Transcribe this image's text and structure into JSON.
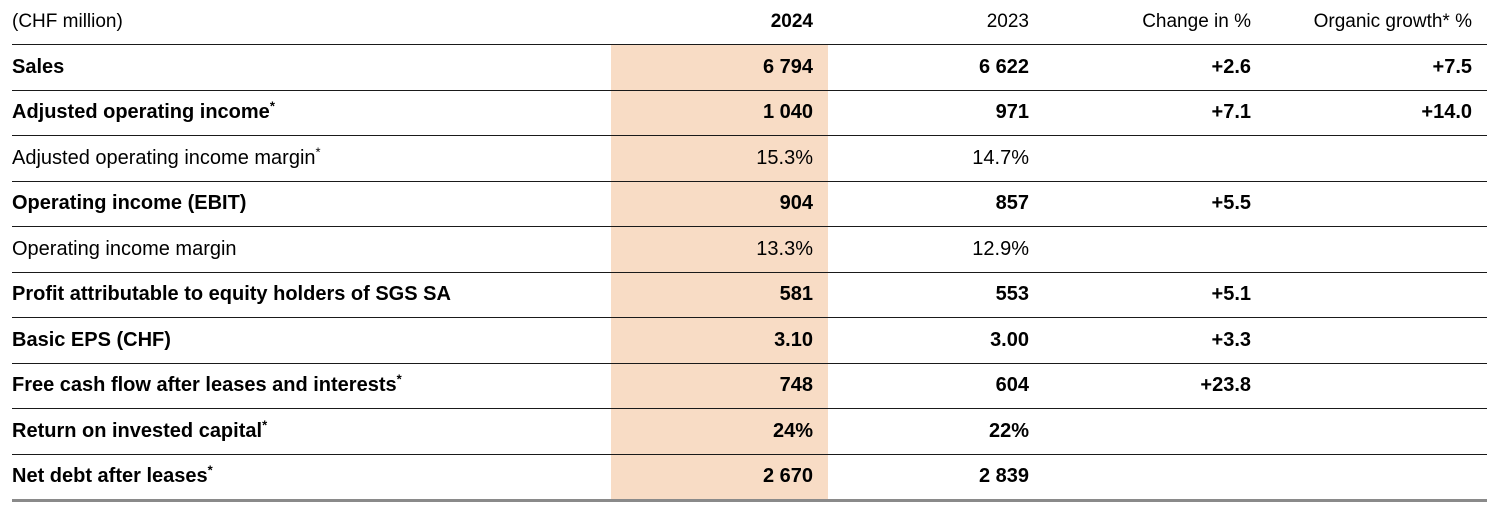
{
  "table": {
    "headers": {
      "unit": "(CHF million)",
      "y2024": "2024",
      "y2023": "2023",
      "change": "Change in %",
      "organic": "Organic growth* %"
    },
    "rows": [
      {
        "label": "Sales",
        "sup": "",
        "v2024": "6 794",
        "v2023": "6 622",
        "change": "+2.6",
        "organic": "+7.5",
        "bold": true
      },
      {
        "label": "Adjusted operating income",
        "sup": "*",
        "v2024": "1 040",
        "v2023": "971",
        "change": "+7.1",
        "organic": "+14.0",
        "bold": true
      },
      {
        "label": "Adjusted operating income margin",
        "sup": "*",
        "v2024": "15.3%",
        "v2023": "14.7%",
        "change": "",
        "organic": "",
        "bold": false
      },
      {
        "label": "Operating income (EBIT)",
        "sup": "",
        "v2024": "904",
        "v2023": "857",
        "change": "+5.5",
        "organic": "",
        "bold": true
      },
      {
        "label": "Operating income margin",
        "sup": "",
        "v2024": "13.3%",
        "v2023": "12.9%",
        "change": "",
        "organic": "",
        "bold": false
      },
      {
        "label": "Profit attributable to equity holders of SGS SA",
        "sup": "",
        "v2024": "581",
        "v2023": "553",
        "change": "+5.1",
        "organic": "",
        "bold": true
      },
      {
        "label": "Basic EPS (CHF)",
        "sup": "",
        "v2024": "3.10",
        "v2023": "3.00",
        "change": "+3.3",
        "organic": "",
        "bold": true
      },
      {
        "label": "Free cash flow after leases and interests",
        "sup": "*",
        "v2024": "748",
        "v2023": "604",
        "change": "+23.8",
        "organic": "",
        "bold": true
      },
      {
        "label": "Return on invested capital",
        "sup": "*",
        "v2024": "24%",
        "v2023": "22%",
        "change": "",
        "organic": "",
        "bold": true
      },
      {
        "label": "Net debt after leases",
        "sup": "*",
        "v2024": "2 670",
        "v2023": "2 839",
        "change": "",
        "organic": "",
        "bold": true
      }
    ]
  },
  "colors": {
    "highlight_2024": "#F8DCC5",
    "row_rule": "#1a1a1a",
    "bottom_rule": "#8a8a8a",
    "text": "#000000"
  }
}
